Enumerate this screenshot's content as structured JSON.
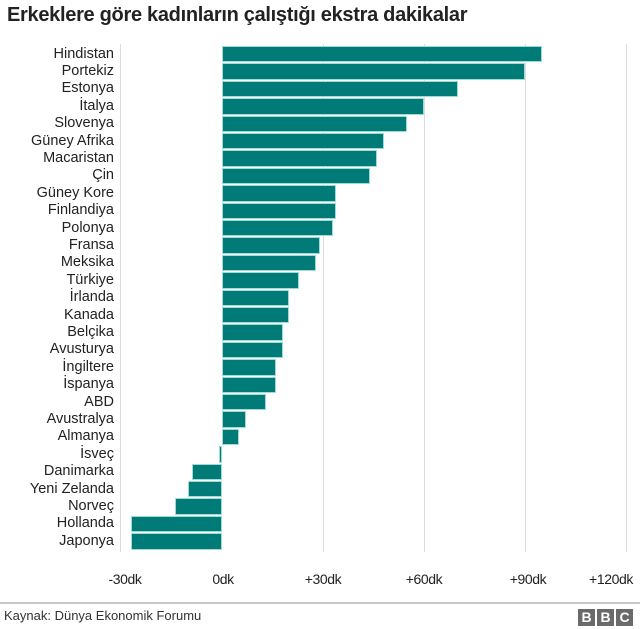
{
  "title": "Erkeklere göre kadınların çalıştığı ekstra dakikalar",
  "footer": {
    "source": "Kaynak: Dünya Ekonomik Forumu",
    "logo": [
      "B",
      "B",
      "C"
    ]
  },
  "colors": {
    "bar": "#007b78",
    "bar_edge": "#9fdcd8",
    "grid": "#dcdcdc"
  },
  "chart_data": {
    "type": "bar",
    "orientation": "horizontal",
    "title": "Erkeklere göre kadınların çalıştığı ekstra dakikalar",
    "xlabel": "",
    "ylabel": "",
    "xlim": [
      -30,
      120
    ],
    "grid": true,
    "legend": null,
    "tick_values": [
      -30,
      0,
      30,
      60,
      90,
      120
    ],
    "tick_labels": [
      "-30dk",
      "0dk",
      "+30dk",
      "+60dk",
      "+90dk",
      "+120dk"
    ],
    "categories": [
      "Hindistan",
      "Portekiz",
      "Estonya",
      "İtalya",
      "Slovenya",
      "Güney Afrika",
      "Macaristan",
      "Çin",
      "Güney Kore",
      "Finlandiya",
      "Polonya",
      "Fransa",
      "Meksika",
      "Türkiye",
      "İrlanda",
      "Kanada",
      "Belçika",
      "Avusturya",
      "İngiltere",
      "İspanya",
      "ABD",
      "Avustralya",
      "Almanya",
      "İsveç",
      "Danimarka",
      "Yeni Zelanda",
      "Norveç",
      "Hollanda",
      "Japonya"
    ],
    "values": [
      95,
      90,
      70,
      60,
      55,
      48,
      46,
      44,
      34,
      34,
      33,
      29,
      28,
      23,
      20,
      20,
      18,
      18,
      16,
      16,
      13,
      7,
      5,
      -1,
      -9,
      -10,
      -14,
      -27,
      -27
    ],
    "source": "Kaynak: Dünya Ekonomik Forumu"
  }
}
